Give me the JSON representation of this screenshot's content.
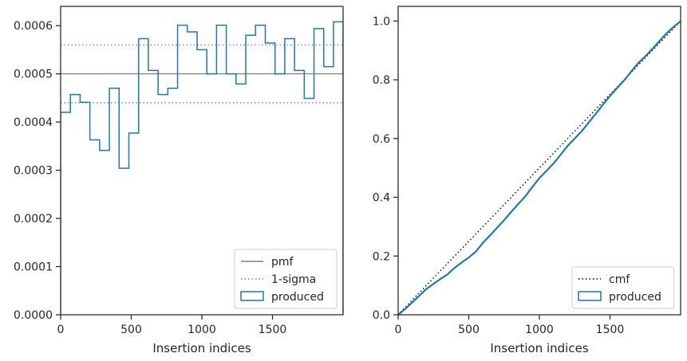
{
  "chart_data": [
    {
      "type": "histogram",
      "xlabel": "Insertion indices",
      "ylabel": "",
      "xlim": [
        0,
        2000
      ],
      "ylim": [
        0,
        0.00064
      ],
      "xticks": [
        0,
        500,
        1000,
        1500
      ],
      "xtick_labels": [
        "0",
        "500",
        "1000",
        "1500"
      ],
      "yticks": [
        0,
        0.0001,
        0.0002,
        0.0003,
        0.0004,
        0.0005,
        0.0006
      ],
      "ytick_labels": [
        "0.0000",
        "0.0001",
        "0.0002",
        "0.0003",
        "0.0004",
        "0.0005",
        "0.0006"
      ],
      "grid": false,
      "legend_position": "lower right",
      "reference_lines": [
        {
          "name": "pmf",
          "y": 0.0005,
          "style": "solid",
          "color": "#808080"
        },
        {
          "name": "1-sigma",
          "y": 0.00056,
          "style": "dotted",
          "color": "#808080"
        },
        {
          "name": "1-sigma",
          "y": 0.00044,
          "style": "dotted",
          "color": "#808080"
        }
      ],
      "series": [
        {
          "name": "produced",
          "color": "#1f77b4",
          "bin_edges": [
            0,
            69,
            138,
            207,
            276,
            345,
            414,
            483,
            552,
            621,
            690,
            759,
            828,
            897,
            966,
            1035,
            1104,
            1173,
            1242,
            1311,
            1380,
            1449,
            1518,
            1587,
            1656,
            1725,
            1794,
            1863,
            1932,
            2000
          ],
          "values": [
            0.00042,
            0.000457,
            0.000441,
            0.000363,
            0.000341,
            0.00047,
            0.000304,
            0.000377,
            0.000573,
            0.000507,
            0.000457,
            0.00047,
            0.000601,
            0.000587,
            0.00055,
            0.0005,
            0.000601,
            0.0005,
            0.000479,
            0.00058,
            0.000601,
            0.000564,
            0.0005,
            0.000573,
            0.000507,
            0.000449,
            0.000594,
            0.000515,
            0.000608
          ]
        }
      ],
      "legend": [
        "pmf",
        "1-sigma",
        "produced"
      ]
    },
    {
      "type": "line",
      "xlabel": "Insertion indices",
      "ylabel": "",
      "xlim": [
        0,
        2000
      ],
      "ylim": [
        0,
        1.05
      ],
      "xticks": [
        0,
        500,
        1000,
        1500
      ],
      "xtick_labels": [
        "0",
        "500",
        "1000",
        "1500"
      ],
      "yticks": [
        0,
        0.2,
        0.4,
        0.6,
        0.8,
        1.0
      ],
      "ytick_labels": [
        "0.0",
        "0.2",
        "0.4",
        "0.6",
        "0.8",
        "1.0"
      ],
      "grid": false,
      "legend_position": "lower right",
      "series": [
        {
          "name": "cmf",
          "style": "dotted",
          "color": "#000000",
          "x": [
            0,
            2000
          ],
          "y": [
            0,
            1.0
          ]
        },
        {
          "name": "produced",
          "style": "step",
          "color": "#1f77b4",
          "x": [
            0,
            50,
            100,
            150,
            200,
            250,
            300,
            350,
            400,
            450,
            500,
            550,
            600,
            650,
            700,
            750,
            800,
            850,
            900,
            950,
            1000,
            1050,
            1100,
            1150,
            1200,
            1250,
            1300,
            1350,
            1400,
            1450,
            1500,
            1550,
            1600,
            1650,
            1700,
            1750,
            1800,
            1850,
            1900,
            1950,
            2000
          ],
          "y": [
            0,
            0.02,
            0.042,
            0.065,
            0.088,
            0.105,
            0.122,
            0.138,
            0.16,
            0.178,
            0.195,
            0.215,
            0.245,
            0.27,
            0.296,
            0.322,
            0.35,
            0.377,
            0.403,
            0.435,
            0.465,
            0.49,
            0.515,
            0.545,
            0.575,
            0.6,
            0.625,
            0.655,
            0.685,
            0.715,
            0.745,
            0.772,
            0.798,
            0.828,
            0.857,
            0.88,
            0.905,
            0.932,
            0.958,
            0.98,
            1.0
          ]
        }
      ],
      "legend": [
        "cmf",
        "produced"
      ]
    }
  ]
}
